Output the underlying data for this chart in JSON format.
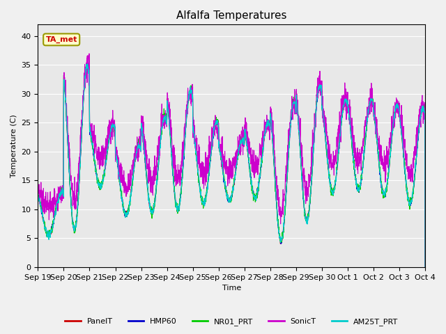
{
  "title": "Alfalfa Temperatures",
  "ylabel": "Temperature (C)",
  "xlabel": "Time",
  "annotation": "TA_met",
  "ylim": [
    0,
    42
  ],
  "yticks": [
    0,
    5,
    10,
    15,
    20,
    25,
    30,
    35,
    40
  ],
  "bg_color": "#e8e8e8",
  "fig_bg_color": "#f0f0f0",
  "line_colors": {
    "PanelT": "#cc0000",
    "HMP60": "#0000cc",
    "NR01_PRT": "#00cc00",
    "SonicT": "#cc00cc",
    "AM25T_PRT": "#00cccc"
  },
  "xticklabels": [
    "Sep 19",
    "Sep 20",
    "Sep 21",
    "Sep 22",
    "Sep 23",
    "Sep 24",
    "Sep 25",
    "Sep 26",
    "Sep 27",
    "Sep 28",
    "Sep 29",
    "Sep 30",
    "Oct 1",
    "Oct 2",
    "Oct 3",
    "Oct 4"
  ],
  "grid_color": "#ffffff",
  "title_fontsize": 11,
  "n_days": 15,
  "day_peaks": [
    13.0,
    35.0,
    24.5,
    21.0,
    26.0,
    30.5,
    25.0,
    22.0,
    25.0,
    28.5,
    31.5,
    29.0,
    29.0,
    28.0,
    27.5,
    29.0
  ],
  "day_troughs": [
    5.5,
    6.5,
    14.0,
    9.0,
    9.5,
    10.0,
    11.0,
    11.5,
    12.0,
    4.5,
    8.0,
    13.0,
    13.5,
    12.5,
    11.0,
    13.0
  ]
}
